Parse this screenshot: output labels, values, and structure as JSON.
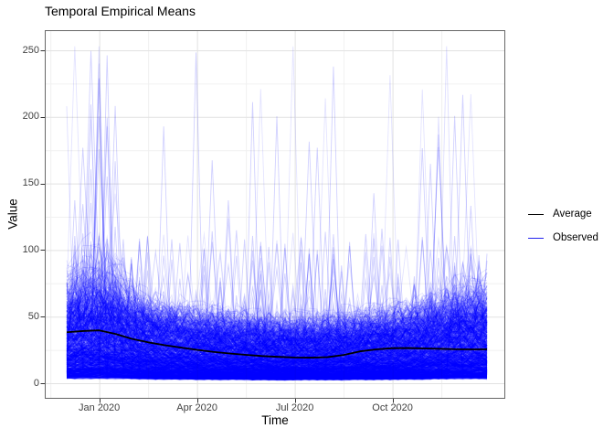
{
  "chart_data": {
    "type": "line",
    "title": "Temporal Empirical Means",
    "xlabel": "Time",
    "ylabel": "Value",
    "x_ticks": [
      {
        "label": "Jan 2020",
        "month": 1
      },
      {
        "label": "Apr 2020",
        "month": 4
      },
      {
        "label": "Jul 2020",
        "month": 7
      },
      {
        "label": "Oct 2020",
        "month": 10
      }
    ],
    "x_minor_months": [
      -0.5,
      2.5,
      5.5,
      8.5,
      11.5
    ],
    "y_ticks": [
      0,
      50,
      100,
      150,
      200,
      250
    ],
    "y_minor": [
      25,
      75,
      125,
      175,
      225
    ],
    "x_range_months_since_dec2019": [
      0,
      12.9
    ],
    "ylim_displayed": [
      -12,
      266
    ],
    "grid": true,
    "legend_position": "right",
    "series": [
      {
        "name": "Average",
        "color": "#000000",
        "width": 1.8,
        "x_months": [
          0,
          0.5,
          1,
          1.5,
          2,
          2.5,
          3,
          3.5,
          4,
          4.5,
          5,
          5.5,
          6,
          6.5,
          7,
          7.5,
          8,
          8.5,
          9,
          9.5,
          10,
          10.5,
          11,
          11.5,
          12,
          12.5,
          12.9
        ],
        "values": [
          38.3,
          39.2,
          39.7,
          37.0,
          33.3,
          30.7,
          28.6,
          26.8,
          25.1,
          23.5,
          22.3,
          21.3,
          20.4,
          19.8,
          19.3,
          19.2,
          19.6,
          21.2,
          23.9,
          25.4,
          26.3,
          26.4,
          26.1,
          25.8,
          25.5,
          25.4,
          25.5
        ]
      },
      {
        "name": "Observed",
        "color": "#0000FF",
        "alpha": 0.11,
        "style": "ensemble",
        "count": 900
      }
    ],
    "observed_ensemble": {
      "seed": 42,
      "count": 900,
      "core_value_band": [
        3,
        55
      ],
      "winter_cloud_max": 110,
      "spike_max": 253,
      "notable_spikes": [
        {
          "month": 0.08,
          "value": 208
        },
        {
          "month": 0.95,
          "value": 240
        },
        {
          "month": 1.0,
          "value": 253
        },
        {
          "month": 1.05,
          "value": 228
        },
        {
          "month": 11.5,
          "value": 200
        },
        {
          "month": 11.55,
          "value": 253
        }
      ]
    },
    "legend": {
      "entries": [
        {
          "label": "Average",
          "color": "#000000"
        },
        {
          "label": "Observed",
          "color": "#2222EE"
        }
      ]
    },
    "colors": {
      "observed_blue": "#0000FF",
      "average_black": "#000000",
      "grid_major": "#e2e2e2",
      "grid_minor": "#f0f0f0",
      "panel_border": "#666666",
      "tick_mark": "#333333",
      "tick_label": "#404040",
      "background": "#ffffff"
    }
  }
}
